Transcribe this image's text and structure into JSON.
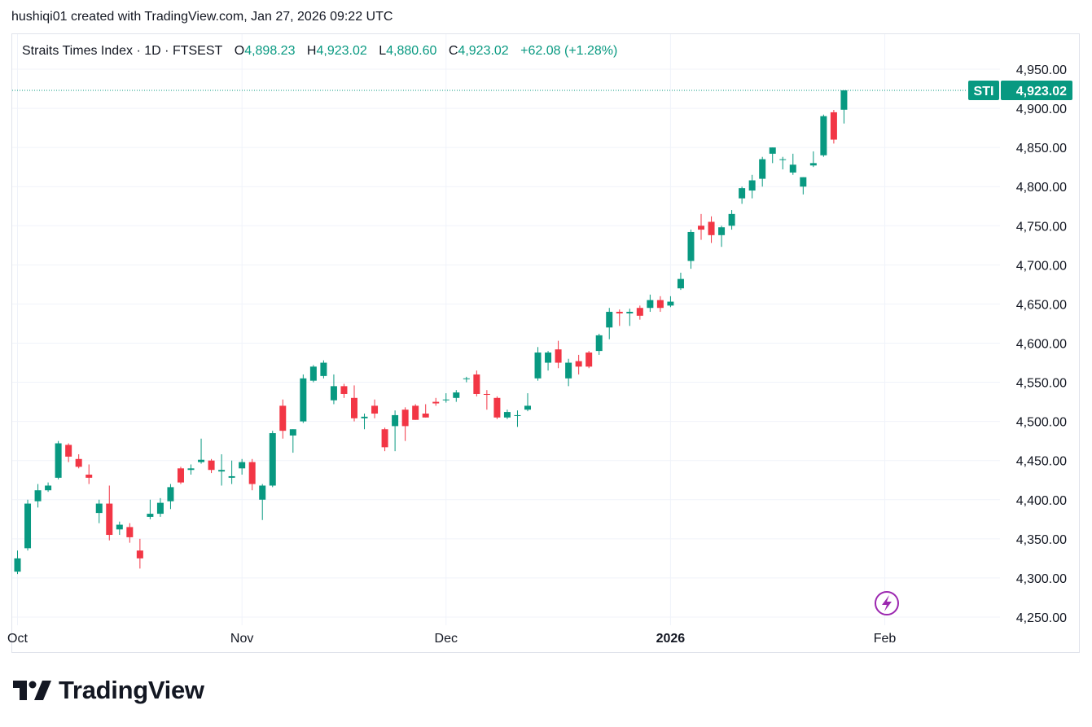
{
  "credit": "hushiqi01 created with TradingView.com, Jan 27, 2026 09:22 UTC",
  "brand": {
    "name": "TradingView",
    "logo_icon": "tradingview-logo-icon"
  },
  "colors": {
    "up": "#089981",
    "down": "#f23645",
    "grid": "#f0f3fa",
    "text": "#131722",
    "lightning": "#9c27b0"
  },
  "legend": {
    "symbol": "Straits Times Index · 1D · FTSEST",
    "open_label": "O",
    "open": "4,898.23",
    "high_label": "H",
    "high": "4,923.02",
    "low_label": "L",
    "low": "4,880.60",
    "close_label": "C",
    "close": "4,923.02",
    "change": "+62.08 (+1.28%)"
  },
  "price_tag": {
    "symbol": "STI",
    "value": "4,923.02",
    "price": 4923.02
  },
  "lightning_icon": "lightning-icon",
  "chart_data": {
    "type": "candlestick",
    "title": "Straits Times Index · 1D · FTSEST",
    "y_ticks": [
      "4,950.00",
      "4,900.00",
      "4,850.00",
      "4,800.00",
      "4,750.00",
      "4,700.00",
      "4,650.00",
      "4,600.00",
      "4,550.00",
      "4,500.00",
      "4,450.00",
      "4,400.00",
      "4,350.00",
      "4,300.00",
      "4,250.00"
    ],
    "y_tick_values": [
      4950,
      4900,
      4850,
      4800,
      4750,
      4700,
      4650,
      4600,
      4550,
      4500,
      4450,
      4400,
      4350,
      4300,
      4250
    ],
    "ylim": [
      4240,
      4980
    ],
    "x_ticks": [
      {
        "label": "Oct",
        "index": 0,
        "bold": false
      },
      {
        "label": "Nov",
        "index": 22,
        "bold": false
      },
      {
        "label": "Dec",
        "index": 42,
        "bold": false
      },
      {
        "label": "2026",
        "index": 64,
        "bold": true
      },
      {
        "label": "Feb",
        "index": 85,
        "bold": false
      }
    ],
    "candles": [
      {
        "o": 4308,
        "h": 4335,
        "l": 4305,
        "c": 4325
      },
      {
        "o": 4338,
        "h": 4400,
        "l": 4335,
        "c": 4395
      },
      {
        "o": 4398,
        "h": 4420,
        "l": 4390,
        "c": 4412
      },
      {
        "o": 4412,
        "h": 4422,
        "l": 4410,
        "c": 4418
      },
      {
        "o": 4428,
        "h": 4475,
        "l": 4426,
        "c": 4472
      },
      {
        "o": 4470,
        "h": 4472,
        "l": 4448,
        "c": 4455
      },
      {
        "o": 4452,
        "h": 4458,
        "l": 4440,
        "c": 4442
      },
      {
        "o": 4432,
        "h": 4445,
        "l": 4420,
        "c": 4428
      },
      {
        "o": 4383,
        "h": 4400,
        "l": 4370,
        "c": 4395
      },
      {
        "o": 4395,
        "h": 4418,
        "l": 4348,
        "c": 4355
      },
      {
        "o": 4362,
        "h": 4372,
        "l": 4355,
        "c": 4368
      },
      {
        "o": 4365,
        "h": 4370,
        "l": 4345,
        "c": 4352
      },
      {
        "o": 4335,
        "h": 4350,
        "l": 4312,
        "c": 4325
      },
      {
        "o": 4378,
        "h": 4400,
        "l": 4375,
        "c": 4382
      },
      {
        "o": 4382,
        "h": 4402,
        "l": 4378,
        "c": 4396
      },
      {
        "o": 4398,
        "h": 4420,
        "l": 4388,
        "c": 4416
      },
      {
        "o": 4440,
        "h": 4442,
        "l": 4420,
        "c": 4422
      },
      {
        "o": 4438,
        "h": 4445,
        "l": 4432,
        "c": 4440
      },
      {
        "o": 4448,
        "h": 4478,
        "l": 4446,
        "c": 4451
      },
      {
        "o": 4450,
        "h": 4452,
        "l": 4434,
        "c": 4438
      },
      {
        "o": 4436,
        "h": 4458,
        "l": 4418,
        "c": 4438
      },
      {
        "o": 4428,
        "h": 4450,
        "l": 4420,
        "c": 4430
      },
      {
        "o": 4440,
        "h": 4452,
        "l": 4432,
        "c": 4448
      },
      {
        "o": 4448,
        "h": 4452,
        "l": 4412,
        "c": 4420
      },
      {
        "o": 4400,
        "h": 4420,
        "l": 4374,
        "c": 4418
      },
      {
        "o": 4418,
        "h": 4488,
        "l": 4416,
        "c": 4485
      },
      {
        "o": 4520,
        "h": 4528,
        "l": 4478,
        "c": 4488
      },
      {
        "o": 4482,
        "h": 4490,
        "l": 4460,
        "c": 4490
      },
      {
        "o": 4500,
        "h": 4560,
        "l": 4498,
        "c": 4555
      },
      {
        "o": 4552,
        "h": 4572,
        "l": 4550,
        "c": 4570
      },
      {
        "o": 4558,
        "h": 4578,
        "l": 4555,
        "c": 4575
      },
      {
        "o": 4527,
        "h": 4560,
        "l": 4522,
        "c": 4545
      },
      {
        "o": 4545,
        "h": 4548,
        "l": 4530,
        "c": 4535
      },
      {
        "o": 4530,
        "h": 4546,
        "l": 4500,
        "c": 4504
      },
      {
        "o": 4504,
        "h": 4510,
        "l": 4490,
        "c": 4506
      },
      {
        "o": 4520,
        "h": 4528,
        "l": 4504,
        "c": 4510
      },
      {
        "o": 4490,
        "h": 4492,
        "l": 4462,
        "c": 4467
      },
      {
        "o": 4494,
        "h": 4514,
        "l": 4462,
        "c": 4508
      },
      {
        "o": 4515,
        "h": 4518,
        "l": 4475,
        "c": 4494
      },
      {
        "o": 4520,
        "h": 4522,
        "l": 4502,
        "c": 4502
      },
      {
        "o": 4510,
        "h": 4522,
        "l": 4505,
        "c": 4505
      },
      {
        "o": 4525,
        "h": 4530,
        "l": 4520,
        "c": 4523
      },
      {
        "o": 4528,
        "h": 4536,
        "l": 4524,
        "c": 4528
      },
      {
        "o": 4530,
        "h": 4540,
        "l": 4525,
        "c": 4537
      },
      {
        "o": 4555,
        "h": 4557,
        "l": 4550,
        "c": 4555
      },
      {
        "o": 4560,
        "h": 4565,
        "l": 4532,
        "c": 4535
      },
      {
        "o": 4535,
        "h": 4540,
        "l": 4515,
        "c": 4534
      },
      {
        "o": 4530,
        "h": 4532,
        "l": 4503,
        "c": 4505
      },
      {
        "o": 4505,
        "h": 4515,
        "l": 4503,
        "c": 4512
      },
      {
        "o": 4508,
        "h": 4514,
        "l": 4493,
        "c": 4508
      },
      {
        "o": 4515,
        "h": 4536,
        "l": 4513,
        "c": 4520
      },
      {
        "o": 4555,
        "h": 4595,
        "l": 4552,
        "c": 4588
      },
      {
        "o": 4575,
        "h": 4590,
        "l": 4565,
        "c": 4588
      },
      {
        "o": 4592,
        "h": 4603,
        "l": 4568,
        "c": 4575
      },
      {
        "o": 4555,
        "h": 4580,
        "l": 4545,
        "c": 4575
      },
      {
        "o": 4577,
        "h": 4585,
        "l": 4560,
        "c": 4570
      },
      {
        "o": 4588,
        "h": 4590,
        "l": 4568,
        "c": 4570
      },
      {
        "o": 4590,
        "h": 4612,
        "l": 4585,
        "c": 4610
      },
      {
        "o": 4620,
        "h": 4645,
        "l": 4605,
        "c": 4640
      },
      {
        "o": 4640,
        "h": 4643,
        "l": 4622,
        "c": 4638
      },
      {
        "o": 4638,
        "h": 4644,
        "l": 4622,
        "c": 4640
      },
      {
        "o": 4645,
        "h": 4648,
        "l": 4630,
        "c": 4635
      },
      {
        "o": 4645,
        "h": 4662,
        "l": 4640,
        "c": 4655
      },
      {
        "o": 4655,
        "h": 4660,
        "l": 4640,
        "c": 4645
      },
      {
        "o": 4648,
        "h": 4660,
        "l": 4646,
        "c": 4653
      },
      {
        "o": 4670,
        "h": 4690,
        "l": 4668,
        "c": 4682
      },
      {
        "o": 4705,
        "h": 4745,
        "l": 4695,
        "c": 4742
      },
      {
        "o": 4750,
        "h": 4765,
        "l": 4732,
        "c": 4745
      },
      {
        "o": 4755,
        "h": 4762,
        "l": 4728,
        "c": 4738
      },
      {
        "o": 4738,
        "h": 4750,
        "l": 4723,
        "c": 4748
      },
      {
        "o": 4750,
        "h": 4770,
        "l": 4745,
        "c": 4765
      },
      {
        "o": 4785,
        "h": 4800,
        "l": 4778,
        "c": 4798
      },
      {
        "o": 4795,
        "h": 4815,
        "l": 4785,
        "c": 4808
      },
      {
        "o": 4810,
        "h": 4838,
        "l": 4800,
        "c": 4835
      },
      {
        "o": 4842,
        "h": 4850,
        "l": 4830,
        "c": 4850
      },
      {
        "o": 4835,
        "h": 4838,
        "l": 4822,
        "c": 4835
      },
      {
        "o": 4818,
        "h": 4842,
        "l": 4815,
        "c": 4828
      },
      {
        "o": 4800,
        "h": 4812,
        "l": 4790,
        "c": 4812
      },
      {
        "o": 4827,
        "h": 4845,
        "l": 4825,
        "c": 4830
      },
      {
        "o": 4840,
        "h": 4892,
        "l": 4838,
        "c": 4890
      },
      {
        "o": 4895,
        "h": 4898,
        "l": 4855,
        "c": 4860
      },
      {
        "o": 4898.23,
        "h": 4923.02,
        "l": 4880.6,
        "c": 4923.02
      }
    ]
  }
}
